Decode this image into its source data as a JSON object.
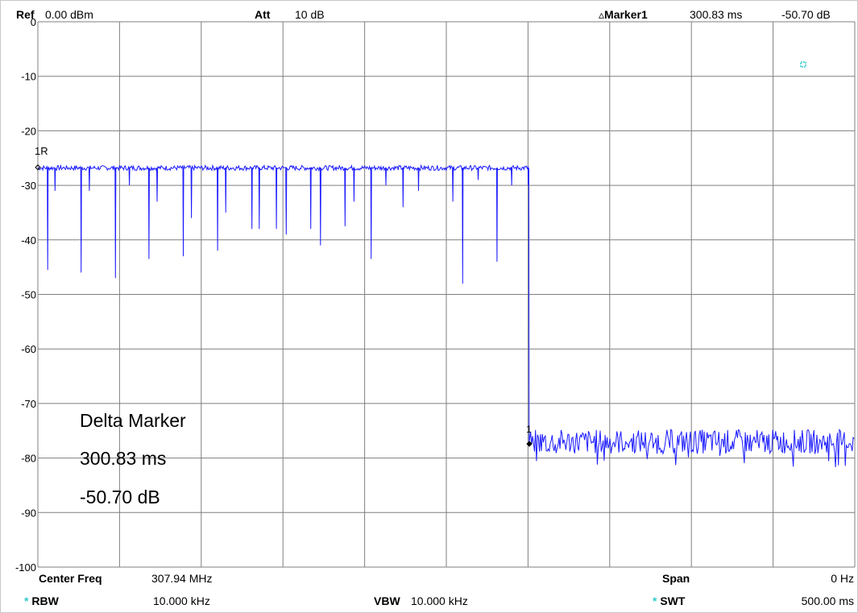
{
  "header": {
    "ref_label": "Ref",
    "ref_value": "0.00 dBm",
    "att_label": "Att",
    "att_value": "10 dB",
    "marker_symbol": "▵",
    "marker_label": "Marker1",
    "marker_time": "300.83 ms",
    "marker_level": "-50.70 dB"
  },
  "footer": {
    "center_label": "Center Freq",
    "center_value": "307.94 MHz",
    "span_label": "Span",
    "span_value": "0 Hz",
    "rbw_star": "*",
    "rbw_label": "RBW",
    "rbw_value": "10.000 kHz",
    "vbw_label": "VBW",
    "vbw_value": "10.000 kHz",
    "swt_star": "*",
    "swt_label": "SWT",
    "swt_value": "500.00 ms"
  },
  "overlay": {
    "line1": "Delta Marker",
    "line2": "300.83 ms",
    "line3": "-50.70 dB"
  },
  "colors": {
    "trace": "#1a1aff",
    "grid": "#7f7f7f",
    "accent": "#33cccc"
  },
  "chart_data": {
    "type": "line",
    "xlim": [
      0,
      500
    ],
    "ylim": [
      -100,
      0
    ],
    "x_unit": "ms",
    "y_unit": "dBm",
    "y_tick_labels": [
      "0",
      "-10",
      "-20",
      "-30",
      "-40",
      "-50",
      "-60",
      "-70",
      "-80",
      "-90",
      "-100"
    ],
    "reference_marker_label": "1R",
    "delta_marker_label": "1",
    "reference_marker": {
      "x": 0,
      "y": -26.7
    },
    "delta_marker": {
      "x": 300.83,
      "y": -77.4
    },
    "series": [
      {
        "high_level": -26.8,
        "high_segment_x": [
          0,
          300
        ],
        "drop_x": 300.5,
        "low_level": -77.0,
        "low_segment_x": [
          300.5,
          500
        ],
        "dips": [
          {
            "x": 6,
            "y": -45.5
          },
          {
            "x": 10.5,
            "y": -31
          },
          {
            "x": 26.5,
            "y": -46
          },
          {
            "x": 31.5,
            "y": -31
          },
          {
            "x": 47.5,
            "y": -47
          },
          {
            "x": 56,
            "y": -30
          },
          {
            "x": 68,
            "y": -43.5
          },
          {
            "x": 73,
            "y": -33
          },
          {
            "x": 89,
            "y": -43
          },
          {
            "x": 94,
            "y": -36
          },
          {
            "x": 110,
            "y": -42
          },
          {
            "x": 115,
            "y": -35
          },
          {
            "x": 131,
            "y": -38
          },
          {
            "x": 135.5,
            "y": -38
          },
          {
            "x": 146,
            "y": -38
          },
          {
            "x": 152,
            "y": -39
          },
          {
            "x": 167,
            "y": -38
          },
          {
            "x": 173,
            "y": -41
          },
          {
            "x": 188,
            "y": -37.5
          },
          {
            "x": 193.5,
            "y": -33
          },
          {
            "x": 204,
            "y": -43.5
          },
          {
            "x": 213,
            "y": -30
          },
          {
            "x": 223.5,
            "y": -34
          },
          {
            "x": 233,
            "y": -31
          },
          {
            "x": 254,
            "y": -33
          },
          {
            "x": 260,
            "y": -48
          },
          {
            "x": 269.5,
            "y": -29
          },
          {
            "x": 281,
            "y": -44
          },
          {
            "x": 290,
            "y": -30
          }
        ]
      }
    ]
  }
}
